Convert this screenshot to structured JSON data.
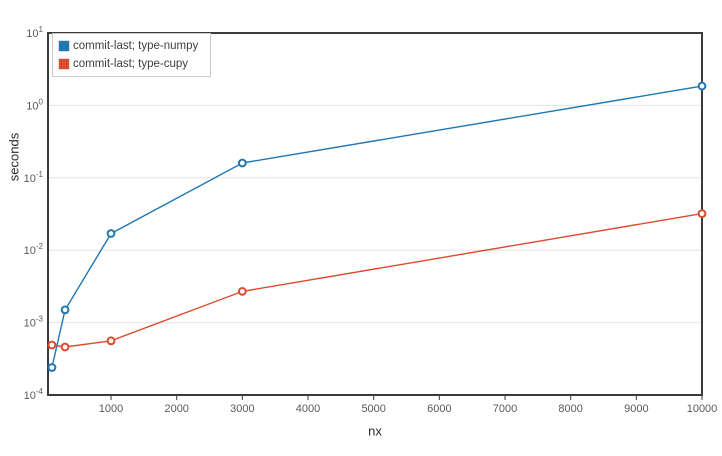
{
  "chart_data": {
    "type": "line",
    "x": [
      100,
      300,
      1000,
      3000,
      10000
    ],
    "series": [
      {
        "name": "commit-last; type-numpy",
        "color": "#1f77b4",
        "values": [
          0.00024,
          0.0015,
          0.017,
          0.16,
          1.85
        ]
      },
      {
        "name": "commit-last; type-cupy",
        "color": "#dd4b2f",
        "values": [
          0.00049,
          0.00046,
          0.00056,
          0.0027,
          0.032
        ]
      }
    ],
    "title": "",
    "xlabel": "nx",
    "ylabel": "seconds",
    "x_ticks": [
      1000,
      2000,
      3000,
      4000,
      5000,
      6000,
      7000,
      8000,
      9000,
      10000
    ],
    "y_tick_exponents": [
      1,
      0,
      -1,
      -2,
      -3,
      -4
    ],
    "xlim": [
      40,
      10000
    ],
    "ylim": [
      0.0001,
      10
    ],
    "x_scale": "linear",
    "y_scale": "log",
    "grid": "horizontal-major-only",
    "legend_position": "top-left",
    "marker": "open-circle"
  },
  "colors": {
    "background": "#ffffff",
    "axis": "#3b3b3b",
    "grid": "#e4e4e4",
    "tick_label": "#5a5a5a",
    "axis_title": "#2b2b2b",
    "legend_border": "#cbcbcb",
    "series_numpy": "#1f77b4",
    "series_cupy": "#dd4b2f"
  }
}
